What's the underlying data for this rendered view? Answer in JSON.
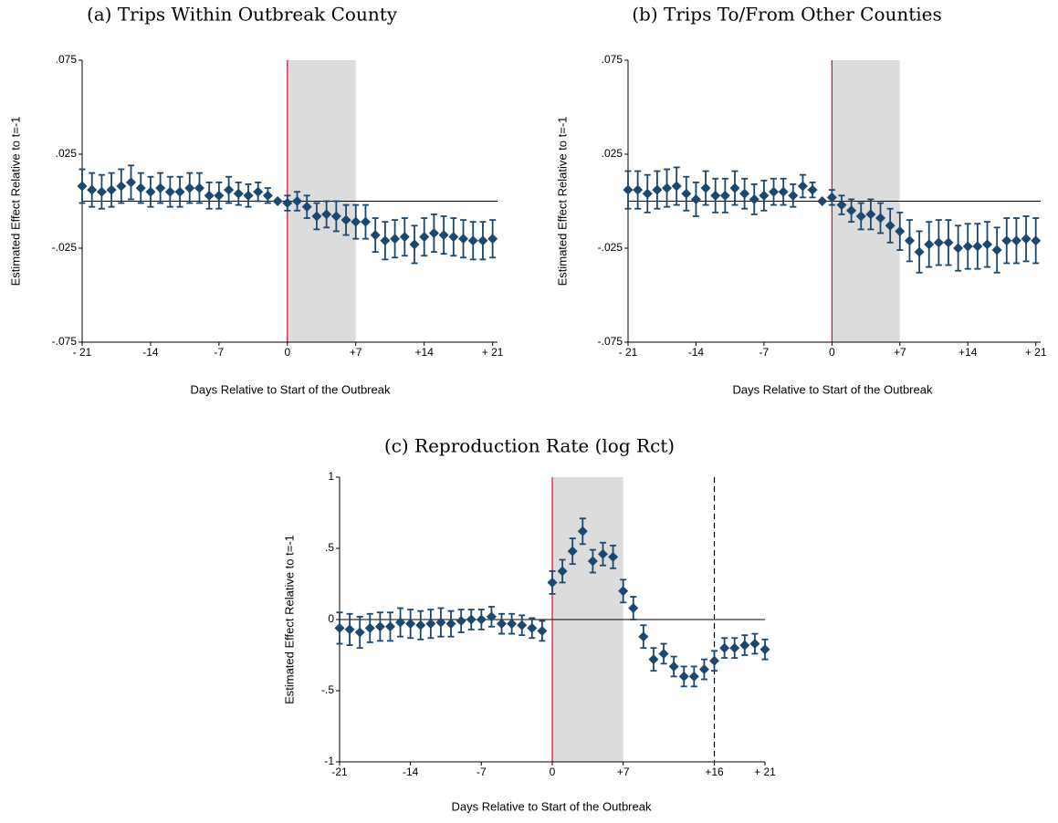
{
  "chart_data": [
    {
      "type": "errorbar",
      "title": "(a) Trips Within Outbreak County",
      "x_label": "Days Relative to Start of the Outbreak",
      "y_label": "Estimated Effect Relative to t=-1",
      "x": [
        -21,
        -20,
        -19,
        -18,
        -17,
        -16,
        -15,
        -14,
        -13,
        -12,
        -11,
        -10,
        -9,
        -8,
        -7,
        -6,
        -5,
        -4,
        -3,
        -2,
        -1,
        0,
        1,
        2,
        3,
        4,
        5,
        6,
        7,
        8,
        9,
        10,
        11,
        12,
        13,
        14,
        15,
        16,
        17,
        18,
        19,
        20,
        21
      ],
      "values": [
        0.008,
        0.006,
        0.005,
        0.006,
        0.008,
        0.01,
        0.007,
        0.005,
        0.007,
        0.005,
        0.005,
        0.007,
        0.007,
        0.003,
        0.003,
        0.006,
        0.004,
        0.003,
        0.005,
        0.003,
        0,
        -0.001,
        0,
        -0.003,
        -0.008,
        -0.007,
        -0.008,
        -0.01,
        -0.011,
        -0.011,
        -0.018,
        -0.021,
        -0.02,
        -0.019,
        -0.023,
        -0.019,
        -0.017,
        -0.018,
        -0.019,
        -0.02,
        -0.021,
        -0.021,
        -0.02
      ],
      "errors": [
        0.009,
        0.009,
        0.009,
        0.009,
        0.009,
        0.009,
        0.008,
        0.008,
        0.008,
        0.008,
        0.008,
        0.008,
        0.008,
        0.007,
        0.007,
        0.007,
        0.006,
        0.006,
        0.005,
        0.004,
        0,
        0.004,
        0.005,
        0.006,
        0.007,
        0.007,
        0.008,
        0.008,
        0.009,
        0.009,
        0.009,
        0.01,
        0.01,
        0.01,
        0.01,
        0.01,
        0.01,
        0.01,
        0.01,
        0.01,
        0.01,
        0.01,
        0.01
      ],
      "color": "#1c476f",
      "xlim": [
        -21,
        21.5
      ],
      "ylim": [
        -0.075,
        0.075
      ],
      "xticks": [
        {
          "value": -21,
          "label": "- 21"
        },
        -14,
        -7,
        0,
        {
          "value": 7,
          "label": "+7"
        },
        {
          "value": 14,
          "label": "+14"
        },
        {
          "value": 21,
          "label": "+ 21"
        }
      ],
      "yticks": [
        {
          "value": -0.075,
          "label": "-.075"
        },
        {
          "value": -0.025,
          "label": "-.025"
        },
        {
          "value": 0.025,
          "label": ".025"
        },
        {
          "value": 0.075,
          "label": ".075"
        }
      ],
      "hline": 0,
      "event_line": 0,
      "event_color": "#c8102e",
      "shade": [
        0,
        7
      ],
      "shade_color": "#dcdcdc"
    },
    {
      "type": "errorbar",
      "title": "(b) Trips To/From Other Counties",
      "x_label": "Days Relative to Start of the Outbreak",
      "y_label": "Estimated Effect Relative to t=-1",
      "x": [
        -21,
        -20,
        -19,
        -18,
        -17,
        -16,
        -15,
        -14,
        -13,
        -12,
        -11,
        -10,
        -9,
        -8,
        -7,
        -6,
        -5,
        -4,
        -3,
        -2,
        -1,
        0,
        1,
        2,
        3,
        4,
        5,
        6,
        7,
        8,
        9,
        10,
        11,
        12,
        13,
        14,
        15,
        16,
        17,
        18,
        19,
        20,
        21
      ],
      "values": [
        0.006,
        0.006,
        0.004,
        0.006,
        0.007,
        0.008,
        0.004,
        0.001,
        0.007,
        0.003,
        0.003,
        0.007,
        0.004,
        0.001,
        0.003,
        0.005,
        0.005,
        0.003,
        0.008,
        0.006,
        0,
        0.002,
        -0.002,
        -0.005,
        -0.008,
        -0.007,
        -0.009,
        -0.013,
        -0.016,
        -0.021,
        -0.027,
        -0.023,
        -0.022,
        -0.022,
        -0.025,
        -0.024,
        -0.024,
        -0.023,
        -0.026,
        -0.021,
        -0.021,
        -0.02,
        -0.021
      ],
      "errors": [
        0.01,
        0.01,
        0.01,
        0.01,
        0.01,
        0.01,
        0.009,
        0.009,
        0.009,
        0.009,
        0.009,
        0.009,
        0.008,
        0.008,
        0.008,
        0.007,
        0.007,
        0.006,
        0.006,
        0.004,
        0,
        0.004,
        0.005,
        0.006,
        0.007,
        0.008,
        0.008,
        0.009,
        0.01,
        0.011,
        0.011,
        0.012,
        0.012,
        0.012,
        0.012,
        0.012,
        0.012,
        0.012,
        0.012,
        0.012,
        0.012,
        0.012,
        0.012
      ],
      "color": "#1c476f",
      "xlim": [
        -21,
        21.5
      ],
      "ylim": [
        -0.075,
        0.075
      ],
      "xticks": [
        {
          "value": -21,
          "label": "- 21"
        },
        -14,
        -7,
        0,
        {
          "value": 7,
          "label": "+7"
        },
        {
          "value": 14,
          "label": "+14"
        },
        {
          "value": 21,
          "label": "+ 21"
        }
      ],
      "yticks": [
        {
          "value": -0.075,
          "label": "-.075"
        },
        {
          "value": -0.025,
          "label": "-.025"
        },
        {
          "value": 0.025,
          "label": ".025"
        },
        {
          "value": 0.075,
          "label": ".075"
        }
      ],
      "hline": 0,
      "event_line": 0,
      "event_color": "#c8102e",
      "shade": [
        0,
        7
      ],
      "shade_color": "#dcdcdc"
    },
    {
      "type": "errorbar",
      "title": "(c) Reproduction Rate (log Rct)",
      "x_label": "Days Relative to Start of the Outbreak",
      "y_label": "Estimated Effect Relative to t=-1",
      "x": [
        -21,
        -20,
        -19,
        -18,
        -17,
        -16,
        -15,
        -14,
        -13,
        -12,
        -11,
        -10,
        -9,
        -8,
        -7,
        -6,
        -5,
        -4,
        -3,
        -2,
        -1,
        0,
        1,
        2,
        3,
        4,
        5,
        6,
        7,
        8,
        9,
        10,
        11,
        12,
        13,
        14,
        15,
        16,
        17,
        18,
        19,
        20,
        21
      ],
      "values": [
        -0.06,
        -0.07,
        -0.09,
        -0.06,
        -0.05,
        -0.05,
        -0.02,
        -0.03,
        -0.04,
        -0.03,
        -0.02,
        -0.03,
        -0.01,
        0,
        0,
        0.02,
        -0.03,
        -0.03,
        -0.04,
        -0.06,
        -0.08,
        0.26,
        0.34,
        0.48,
        0.62,
        0.41,
        0.46,
        0.44,
        0.2,
        0.08,
        -0.12,
        -0.28,
        -0.24,
        -0.33,
        -0.4,
        -0.4,
        -0.35,
        -0.29,
        -0.2,
        -0.2,
        -0.18,
        -0.17,
        -0.21
      ],
      "errors": [
        0.11,
        0.11,
        0.11,
        0.1,
        0.1,
        0.1,
        0.1,
        0.1,
        0.1,
        0.1,
        0.1,
        0.09,
        0.08,
        0.07,
        0.07,
        0.07,
        0.07,
        0.07,
        0.07,
        0.07,
        0.07,
        0.08,
        0.08,
        0.09,
        0.09,
        0.08,
        0.08,
        0.08,
        0.08,
        0.08,
        0.08,
        0.08,
        0.07,
        0.07,
        0.07,
        0.07,
        0.07,
        0.07,
        0.07,
        0.07,
        0.07,
        0.07,
        0.07
      ],
      "color": "#1c476f",
      "xlim": [
        -21,
        21
      ],
      "ylim": [
        -1,
        1
      ],
      "xticks": [
        -21,
        -14,
        -7,
        0,
        {
          "value": 7,
          "label": "+7"
        },
        {
          "value": 16,
          "label": "+16"
        },
        {
          "value": 21,
          "label": "+ 21"
        }
      ],
      "yticks": [
        -1,
        {
          "value": -0.5,
          "label": "-.5"
        },
        0,
        {
          "value": 0.5,
          "label": ".5"
        },
        1
      ],
      "hline": 0,
      "event_line": 0,
      "event_color": "#c8102e",
      "shade": [
        0,
        7
      ],
      "shade_color": "#dcdcdc",
      "dashed_line": 16
    }
  ]
}
